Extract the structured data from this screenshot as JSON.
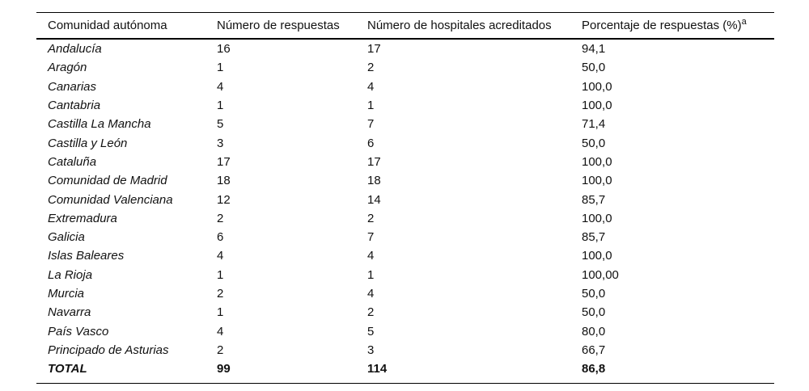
{
  "table": {
    "headers": [
      "Comunidad autónoma",
      "Número de respuestas",
      "Número de hospitales acreditados",
      "Porcentaje de respuestas (%)"
    ],
    "header_footnote_marker": "a",
    "rows": [
      [
        "Andalucía",
        "16",
        "17",
        "94,1"
      ],
      [
        "Aragón",
        "1",
        "2",
        "50,0"
      ],
      [
        "Canarias",
        "4",
        "4",
        "100,0"
      ],
      [
        "Cantabria",
        "1",
        "1",
        "100,0"
      ],
      [
        "Castilla La Mancha",
        "5",
        "7",
        "71,4"
      ],
      [
        "Castilla y León",
        "3",
        "6",
        "50,0"
      ],
      [
        "Cataluña",
        "17",
        "17",
        "100,0"
      ],
      [
        "Comunidad de Madrid",
        "18",
        "18",
        "100,0"
      ],
      [
        "Comunidad Valenciana",
        "12",
        "14",
        "85,7"
      ],
      [
        "Extremadura",
        "2",
        "2",
        "100,0"
      ],
      [
        "Galicia",
        "6",
        "7",
        "85,7"
      ],
      [
        "Islas Baleares",
        "4",
        "4",
        "100,0"
      ],
      [
        "La Rioja",
        "1",
        "1",
        "100,00"
      ],
      [
        "Murcia",
        "2",
        "4",
        "50,0"
      ],
      [
        "Navarra",
        "1",
        "2",
        "50,0"
      ],
      [
        "País Vasco",
        "4",
        "5",
        "80,0"
      ],
      [
        "Principado de Asturias",
        "2",
        "3",
        "66,7"
      ]
    ],
    "total_row": [
      "TOTAL",
      "99",
      "114",
      "86,8"
    ]
  },
  "chart_data": {
    "type": "table",
    "columns": [
      "Comunidad autónoma",
      "Número de respuestas",
      "Número de hospitales acreditados",
      "Porcentaje de respuestas (%)"
    ],
    "rows": [
      {
        "comunidad": "Andalucía",
        "respuestas": 16,
        "hospitales_acreditados": 17,
        "porcentaje": 94.1
      },
      {
        "comunidad": "Aragón",
        "respuestas": 1,
        "hospitales_acreditados": 2,
        "porcentaje": 50.0
      },
      {
        "comunidad": "Canarias",
        "respuestas": 4,
        "hospitales_acreditados": 4,
        "porcentaje": 100.0
      },
      {
        "comunidad": "Cantabria",
        "respuestas": 1,
        "hospitales_acreditados": 1,
        "porcentaje": 100.0
      },
      {
        "comunidad": "Castilla La Mancha",
        "respuestas": 5,
        "hospitales_acreditados": 7,
        "porcentaje": 71.4
      },
      {
        "comunidad": "Castilla y León",
        "respuestas": 3,
        "hospitales_acreditados": 6,
        "porcentaje": 50.0
      },
      {
        "comunidad": "Cataluña",
        "respuestas": 17,
        "hospitales_acreditados": 17,
        "porcentaje": 100.0
      },
      {
        "comunidad": "Comunidad de Madrid",
        "respuestas": 18,
        "hospitales_acreditados": 18,
        "porcentaje": 100.0
      },
      {
        "comunidad": "Comunidad Valenciana",
        "respuestas": 12,
        "hospitales_acreditados": 14,
        "porcentaje": 85.7
      },
      {
        "comunidad": "Extremadura",
        "respuestas": 2,
        "hospitales_acreditados": 2,
        "porcentaje": 100.0
      },
      {
        "comunidad": "Galicia",
        "respuestas": 6,
        "hospitales_acreditados": 7,
        "porcentaje": 85.7
      },
      {
        "comunidad": "Islas Baleares",
        "respuestas": 4,
        "hospitales_acreditados": 4,
        "porcentaje": 100.0
      },
      {
        "comunidad": "La Rioja",
        "respuestas": 1,
        "hospitales_acreditados": 1,
        "porcentaje": 100.0
      },
      {
        "comunidad": "Murcia",
        "respuestas": 2,
        "hospitales_acreditados": 4,
        "porcentaje": 50.0
      },
      {
        "comunidad": "Navarra",
        "respuestas": 1,
        "hospitales_acreditados": 2,
        "porcentaje": 50.0
      },
      {
        "comunidad": "País Vasco",
        "respuestas": 4,
        "hospitales_acreditados": 5,
        "porcentaje": 80.0
      },
      {
        "comunidad": "Principado de Asturias",
        "respuestas": 2,
        "hospitales_acreditados": 3,
        "porcentaje": 66.7
      },
      {
        "comunidad": "TOTAL",
        "respuestas": 99,
        "hospitales_acreditados": 114,
        "porcentaje": 86.8
      }
    ]
  }
}
